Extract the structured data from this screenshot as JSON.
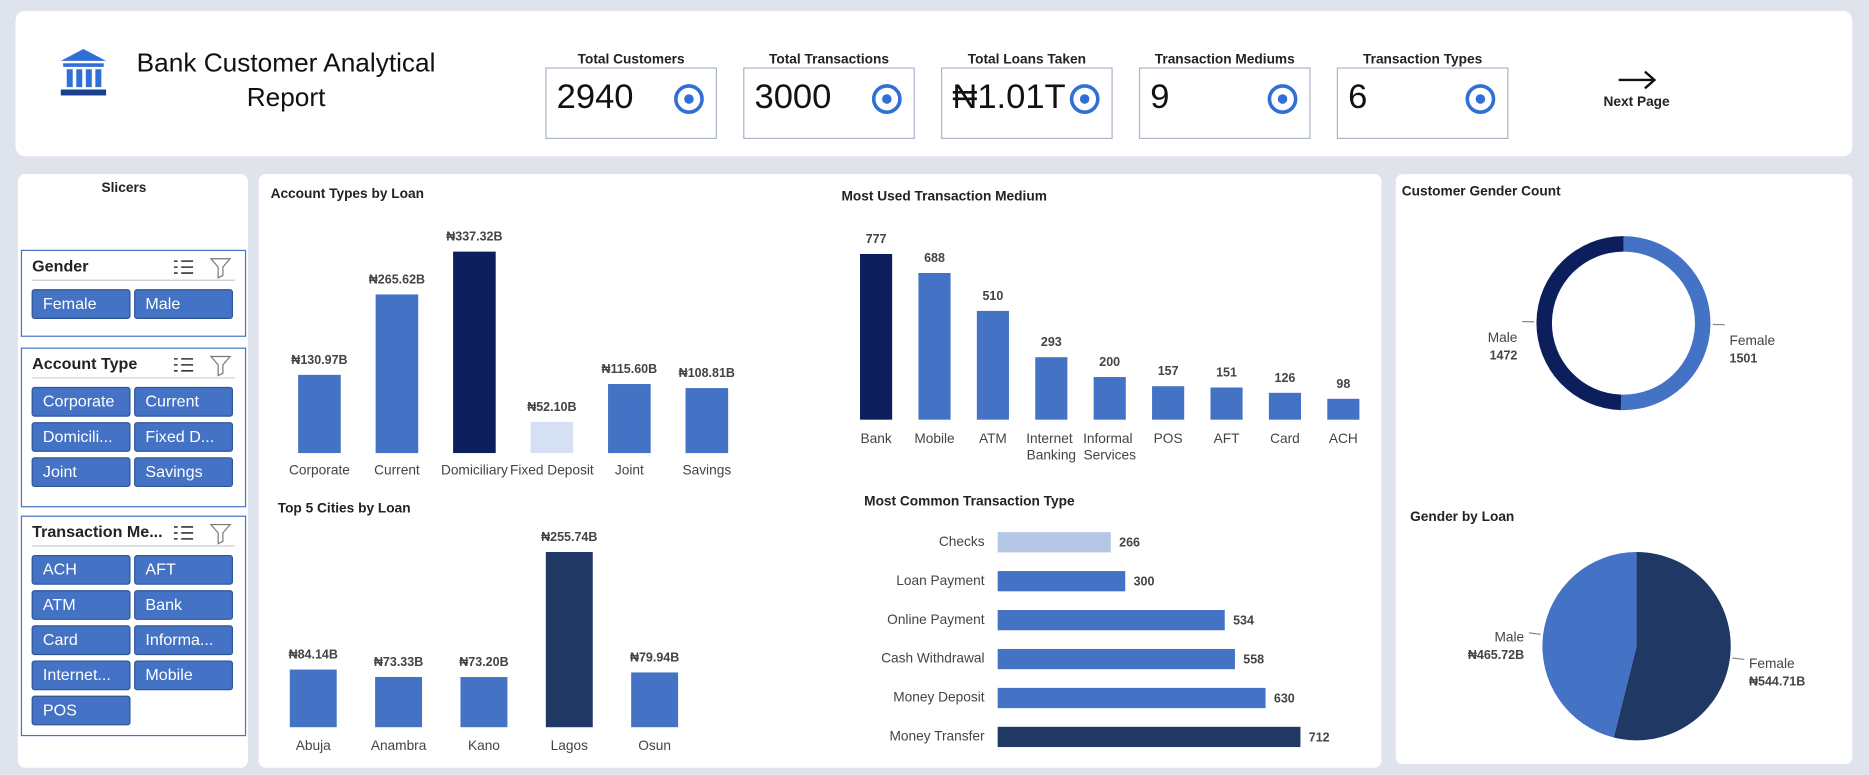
{
  "header": {
    "title": "Bank Customer Analytical Report",
    "next_page": "Next Page"
  },
  "kpis": [
    {
      "label": "Total Customers",
      "value": 2940
    },
    {
      "label": "Total Transactions",
      "value": 3000
    },
    {
      "label": "Total Loans Taken",
      "value": "₦1.01T"
    },
    {
      "label": "Transaction Mediums",
      "value": 9
    },
    {
      "label": "Transaction Types",
      "value": 6
    }
  ],
  "slicers": {
    "title": "Slicers",
    "groups": [
      {
        "title": "Gender",
        "options": [
          "Female",
          "Male"
        ]
      },
      {
        "title": "Account Type",
        "options": [
          "Corporate",
          "Current",
          "Domicili...",
          "Fixed D...",
          "Joint",
          "Savings"
        ]
      },
      {
        "title": "Transaction Me...",
        "options": [
          "ACH",
          "AFT",
          "ATM",
          "Bank",
          "Card",
          "Informa...",
          "Internet...",
          "Mobile",
          "POS"
        ]
      }
    ]
  },
  "chart_data": [
    {
      "type": "bar",
      "title": "Account Types by Loan",
      "categories": [
        "Corporate",
        "Current",
        "Domiciliary",
        "Fixed Deposit",
        "Joint",
        "Savings"
      ],
      "values": [
        130.97,
        265.62,
        337.32,
        52.1,
        115.6,
        108.81
      ],
      "value_labels": [
        "₦130.97B",
        "₦265.62B",
        "₦337.32B",
        "₦52.10B",
        "₦115.60B",
        "₦108.81B"
      ],
      "colors": [
        "#4472c4",
        "#4472c4",
        "#0c1f5c",
        "#d6e0f5",
        "#4472c4",
        "#4472c4"
      ]
    },
    {
      "type": "bar",
      "title": "Most Used Transaction Medium",
      "categories": [
        "Bank",
        "Mobile",
        "ATM",
        "Internet Banking",
        "Informal Services",
        "POS",
        "AFT",
        "Card",
        "ACH"
      ],
      "values": [
        777,
        688,
        510,
        293,
        200,
        157,
        151,
        126,
        98
      ],
      "colors": [
        "#0c1f5c",
        "#4472c4",
        "#4472c4",
        "#4472c4",
        "#4472c4",
        "#4472c4",
        "#4472c4",
        "#4472c4",
        "#4472c4"
      ]
    },
    {
      "type": "bar",
      "title": "Top 5 Cities by Loan",
      "categories": [
        "Abuja",
        "Anambra",
        "Kano",
        "Lagos",
        "Osun"
      ],
      "values": [
        84.14,
        73.33,
        73.2,
        255.74,
        79.94
      ],
      "value_labels": [
        "₦84.14B",
        "₦73.33B",
        "₦73.20B",
        "₦255.74B",
        "₦79.94B"
      ],
      "colors": [
        "#4472c4",
        "#4472c4",
        "#4472c4",
        "#203864",
        "#4472c4"
      ]
    },
    {
      "type": "barh",
      "title": "Most Common Transaction Type",
      "categories": [
        "Checks",
        "Loan Payment",
        "Online Payment",
        "Cash Withdrawal",
        "Money Deposit",
        "Money Transfer"
      ],
      "values": [
        266,
        300,
        534,
        558,
        630,
        712
      ],
      "colors": [
        "#b4c7e7",
        "#4472c4",
        "#4472c4",
        "#4472c4",
        "#4472c4",
        "#203864"
      ]
    },
    {
      "type": "donut",
      "title": "Customer Gender Count",
      "categories": [
        "Female",
        "Male"
      ],
      "values": [
        1501,
        1472
      ],
      "colors": [
        "#4472c4",
        "#0c1f5c"
      ]
    },
    {
      "type": "pie",
      "title": "Gender by Loan",
      "categories": [
        "Female",
        "Male"
      ],
      "values": [
        544.71,
        465.72
      ],
      "value_labels": [
        "₦544.71B",
        "₦465.72B"
      ],
      "colors": [
        "#203864",
        "#4472c4"
      ]
    }
  ]
}
